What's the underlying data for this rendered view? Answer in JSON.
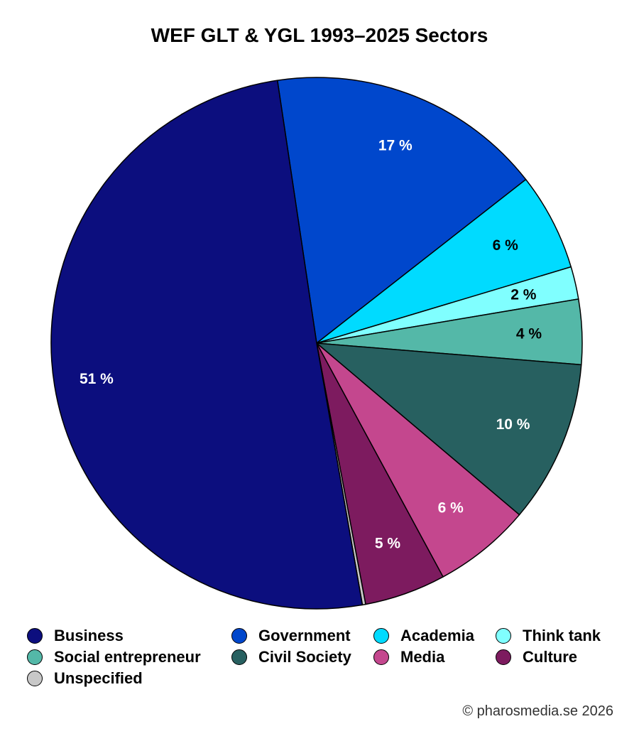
{
  "chart_data": {
    "type": "pie",
    "title": "WEF GLT & YGL 1993–2025 Sectors",
    "slices": [
      {
        "name": "Government",
        "value": 17,
        "label": "17 %",
        "color": "#0047cc"
      },
      {
        "name": "Academia",
        "value": 6,
        "label": "6 %",
        "color": "#00dbff"
      },
      {
        "name": "Think tank",
        "value": 2,
        "label": "2 %",
        "color": "#80ffff"
      },
      {
        "name": "Social entrepreneur",
        "value": 4,
        "label": "4 %",
        "color": "#54b8a8"
      },
      {
        "name": "Civil Society",
        "value": 10,
        "label": "10 %",
        "color": "#276060"
      },
      {
        "name": "Media",
        "value": 6,
        "label": "6 %",
        "color": "#c4478e"
      },
      {
        "name": "Culture",
        "value": 5,
        "label": "5 %",
        "color": "#7d1b5f"
      },
      {
        "name": "Unspecified",
        "value": 0.2,
        "label": "",
        "color": "#c8c8c8"
      },
      {
        "name": "Business",
        "value": 51,
        "label": "51 %",
        "color": "#0c0e7e"
      }
    ],
    "legend": [
      "Business",
      "Government",
      "Academia",
      "Think tank",
      "Social entrepreneur",
      "Civil Society",
      "Media",
      "Culture",
      "Unspecified"
    ],
    "legend_placement": "bottom"
  },
  "credit": "© pharosmedia.se 2026"
}
